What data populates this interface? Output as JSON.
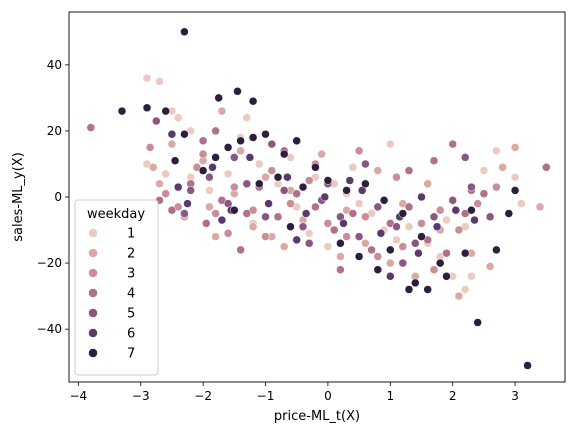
{
  "chart_data": {
    "type": "scatter",
    "title": "",
    "xlabel": "price-ML_t(X)",
    "ylabel": "sales-ML_y(X)",
    "xlim": [
      -4.15,
      3.8
    ],
    "ylim": [
      -56,
      56
    ],
    "xticks": [
      -4,
      -3,
      -2,
      -1,
      0,
      1,
      2,
      3
    ],
    "yticks": [
      -40,
      -20,
      0,
      20,
      40
    ],
    "grid": false,
    "legend": {
      "title": "weekday",
      "placement": "lower-left",
      "entries": [
        "1",
        "2",
        "3",
        "4",
        "5",
        "6",
        "7"
      ]
    },
    "series": [
      {
        "name": "1",
        "color": "#ebcbc1",
        "points": [
          [
            -2.9,
            36
          ],
          [
            -2.7,
            35
          ],
          [
            -2.5,
            26
          ],
          [
            -2.4,
            24
          ],
          [
            -2.9,
            10
          ],
          [
            -2.6,
            7
          ],
          [
            -2.2,
            20
          ],
          [
            -1.3,
            24
          ],
          [
            -1.4,
            18
          ],
          [
            -1.1,
            10
          ],
          [
            -0.6,
            12
          ],
          [
            -0.2,
            6
          ],
          [
            0.1,
            4
          ],
          [
            0.3,
            1
          ],
          [
            0.5,
            -2
          ],
          [
            0.7,
            -5
          ],
          [
            0.9,
            -10
          ],
          [
            1.1,
            -13
          ],
          [
            1.3,
            -9
          ],
          [
            1.6,
            -14
          ],
          [
            1.8,
            -18
          ],
          [
            2.0,
            -24
          ],
          [
            2.2,
            -28
          ],
          [
            2.3,
            -24
          ],
          [
            2.5,
            8
          ],
          [
            2.7,
            14
          ],
          [
            3.0,
            6
          ],
          [
            3.1,
            -2
          ],
          [
            2.2,
            -9
          ],
          [
            1.9,
            -7
          ],
          [
            -0.5,
            -3
          ],
          [
            -0.8,
            4
          ],
          [
            -1.6,
            7
          ],
          [
            -1.9,
            2
          ],
          [
            -2.2,
            6
          ],
          [
            0.0,
            -15
          ],
          [
            0.4,
            9
          ],
          [
            1.0,
            16
          ],
          [
            -1.2,
            -8
          ],
          [
            -0.3,
            -11
          ]
        ]
      },
      {
        "name": "2",
        "color": "#dba8a6",
        "points": [
          [
            -2.8,
            9
          ],
          [
            -2.7,
            4
          ],
          [
            -2.3,
            -6
          ],
          [
            -1.9,
            -3
          ],
          [
            -1.7,
            26
          ],
          [
            -1.5,
            1
          ],
          [
            -1.2,
            -9
          ],
          [
            -0.9,
            -12
          ],
          [
            -0.7,
            -15
          ],
          [
            -0.4,
            -7
          ],
          [
            0.2,
            -18
          ],
          [
            0.6,
            -14
          ],
          [
            1.0,
            -20
          ],
          [
            1.4,
            -24
          ],
          [
            1.8,
            -10
          ],
          [
            2.1,
            -30
          ],
          [
            2.3,
            -17
          ],
          [
            2.8,
            9
          ],
          [
            3.0,
            15
          ],
          [
            3.4,
            -3
          ],
          [
            2.6,
            -21
          ],
          [
            1.6,
            4
          ],
          [
            0.8,
            8
          ],
          [
            -0.1,
            13
          ],
          [
            -1.0,
            6
          ],
          [
            -2.0,
            11
          ],
          [
            -2.5,
            16
          ],
          [
            -1.4,
            14
          ],
          [
            0.3,
            -4
          ],
          [
            1.2,
            -2
          ],
          [
            -0.6,
            2
          ],
          [
            -1.8,
            -12
          ]
        ]
      },
      {
        "name": "3",
        "color": "#c98d96",
        "points": [
          [
            -2.85,
            15
          ],
          [
            -2.6,
            1
          ],
          [
            -2.4,
            -3
          ],
          [
            -2.1,
            9
          ],
          [
            -1.8,
            -5
          ],
          [
            -1.5,
            3
          ],
          [
            -1.2,
            -4
          ],
          [
            -0.9,
            8
          ],
          [
            -0.6,
            -2
          ],
          [
            -0.3,
            5
          ],
          [
            0.0,
            -8
          ],
          [
            0.3,
            -12
          ],
          [
            0.6,
            -6
          ],
          [
            0.9,
            -1
          ],
          [
            1.2,
            -15
          ],
          [
            1.5,
            -8
          ],
          [
            1.8,
            -4
          ],
          [
            2.1,
            -10
          ],
          [
            2.4,
            -2
          ],
          [
            2.7,
            3
          ],
          [
            -1.0,
            -12
          ],
          [
            -0.2,
            10
          ],
          [
            0.5,
            14
          ],
          [
            1.1,
            6
          ],
          [
            1.7,
            -22
          ],
          [
            -2.0,
            13
          ],
          [
            -1.6,
            -11
          ],
          [
            0.8,
            -18
          ]
        ]
      },
      {
        "name": "4",
        "color": "#b0708b",
        "points": [
          [
            -3.8,
            21
          ],
          [
            -2.7,
            -1
          ],
          [
            -2.5,
            -4
          ],
          [
            -2.2,
            4
          ],
          [
            -1.95,
            -8
          ],
          [
            -1.7,
            -1
          ],
          [
            -1.4,
            -16
          ],
          [
            -1.1,
            3
          ],
          [
            -0.8,
            -6
          ],
          [
            -0.5,
            1
          ],
          [
            -0.2,
            -3
          ],
          [
            0.1,
            -10
          ],
          [
            0.4,
            -5
          ],
          [
            0.7,
            -16
          ],
          [
            1.0,
            -8
          ],
          [
            1.3,
            -3
          ],
          [
            1.6,
            -13
          ],
          [
            1.9,
            -17
          ],
          [
            2.2,
            -5
          ],
          [
            2.3,
            2
          ],
          [
            2.0,
            16
          ],
          [
            1.7,
            11
          ],
          [
            1.3,
            8
          ],
          [
            -2.0,
            17
          ],
          [
            -1.8,
            20
          ],
          [
            -0.7,
            14
          ],
          [
            0.2,
            -22
          ],
          [
            -1.3,
            -5
          ],
          [
            2.5,
            1
          ],
          [
            3.5,
            9
          ]
        ]
      },
      {
        "name": "5",
        "color": "#8a5783",
        "points": [
          [
            -2.75,
            23
          ],
          [
            -2.45,
            11
          ],
          [
            -2.2,
            2
          ],
          [
            -1.9,
            6
          ],
          [
            -1.6,
            -2
          ],
          [
            -1.3,
            4
          ],
          [
            -1.0,
            -6
          ],
          [
            -0.7,
            2
          ],
          [
            -0.4,
            -9
          ],
          [
            -0.1,
            -1
          ],
          [
            0.2,
            -6
          ],
          [
            0.5,
            -12
          ],
          [
            0.8,
            -3
          ],
          [
            1.1,
            -9
          ],
          [
            1.4,
            -14
          ],
          [
            1.7,
            -6
          ],
          [
            2.0,
            -1
          ],
          [
            2.3,
            3
          ],
          [
            2.6,
            -6
          ],
          [
            -1.5,
            12
          ],
          [
            -0.9,
            16
          ],
          [
            0.6,
            10
          ],
          [
            1.2,
            -20
          ],
          [
            -0.3,
            -14
          ],
          [
            2.2,
            12
          ],
          [
            -2.3,
            -5
          ],
          [
            0.0,
            4
          ]
        ]
      },
      {
        "name": "6",
        "color": "#5a3a6e",
        "points": [
          [
            -2.5,
            19
          ],
          [
            -2.25,
            -2
          ],
          [
            -1.85,
            9
          ],
          [
            -1.55,
            -4
          ],
          [
            -1.25,
            12
          ],
          [
            -0.95,
            -2
          ],
          [
            -0.65,
            6
          ],
          [
            -0.35,
            -5
          ],
          [
            -0.05,
            0
          ],
          [
            0.25,
            -8
          ],
          [
            0.55,
            2
          ],
          [
            0.85,
            -11
          ],
          [
            1.15,
            -6
          ],
          [
            1.45,
            -17
          ],
          [
            1.75,
            -9
          ],
          [
            2.05,
            -4
          ],
          [
            2.35,
            -7
          ],
          [
            -1.7,
            -7
          ],
          [
            -0.5,
            -13
          ],
          [
            0.35,
            5
          ],
          [
            1.0,
            -24
          ],
          [
            -2.4,
            3
          ],
          [
            1.5,
            0
          ]
        ]
      },
      {
        "name": "7",
        "color": "#2d1e3e",
        "points": [
          [
            -2.3,
            50
          ],
          [
            -3.3,
            26
          ],
          [
            -2.9,
            27
          ],
          [
            -2.6,
            26
          ],
          [
            -2.3,
            19
          ],
          [
            -1.75,
            30
          ],
          [
            -1.45,
            32
          ],
          [
            -1.2,
            29
          ],
          [
            -1.2,
            18
          ],
          [
            -1.4,
            17
          ],
          [
            -1.0,
            19
          ],
          [
            -0.7,
            13
          ],
          [
            -0.5,
            17
          ],
          [
            -1.6,
            15
          ],
          [
            -1.8,
            12
          ],
          [
            -2.0,
            8
          ],
          [
            -2.45,
            11
          ],
          [
            -1.1,
            4
          ],
          [
            -0.8,
            6
          ],
          [
            -0.4,
            3
          ],
          [
            0.0,
            5
          ],
          [
            0.3,
            2
          ],
          [
            0.6,
            4
          ],
          [
            0.9,
            -1
          ],
          [
            1.2,
            -5
          ],
          [
            1.5,
            -12
          ],
          [
            1.8,
            -20
          ],
          [
            1.6,
            -28
          ],
          [
            1.4,
            -26
          ],
          [
            2.2,
            -17
          ],
          [
            2.4,
            -38
          ],
          [
            2.7,
            -16
          ],
          [
            3.2,
            -51
          ],
          [
            1.3,
            -28
          ],
          [
            0.8,
            -22
          ],
          [
            0.2,
            -14
          ],
          [
            -0.6,
            -9
          ],
          [
            -1.5,
            -4
          ],
          [
            2.9,
            -5
          ],
          [
            3.0,
            2
          ],
          [
            2.3,
            -4
          ],
          [
            1.9,
            -24
          ],
          [
            -0.2,
            9
          ],
          [
            0.5,
            -18
          ],
          [
            1.0,
            -16
          ]
        ]
      }
    ]
  }
}
